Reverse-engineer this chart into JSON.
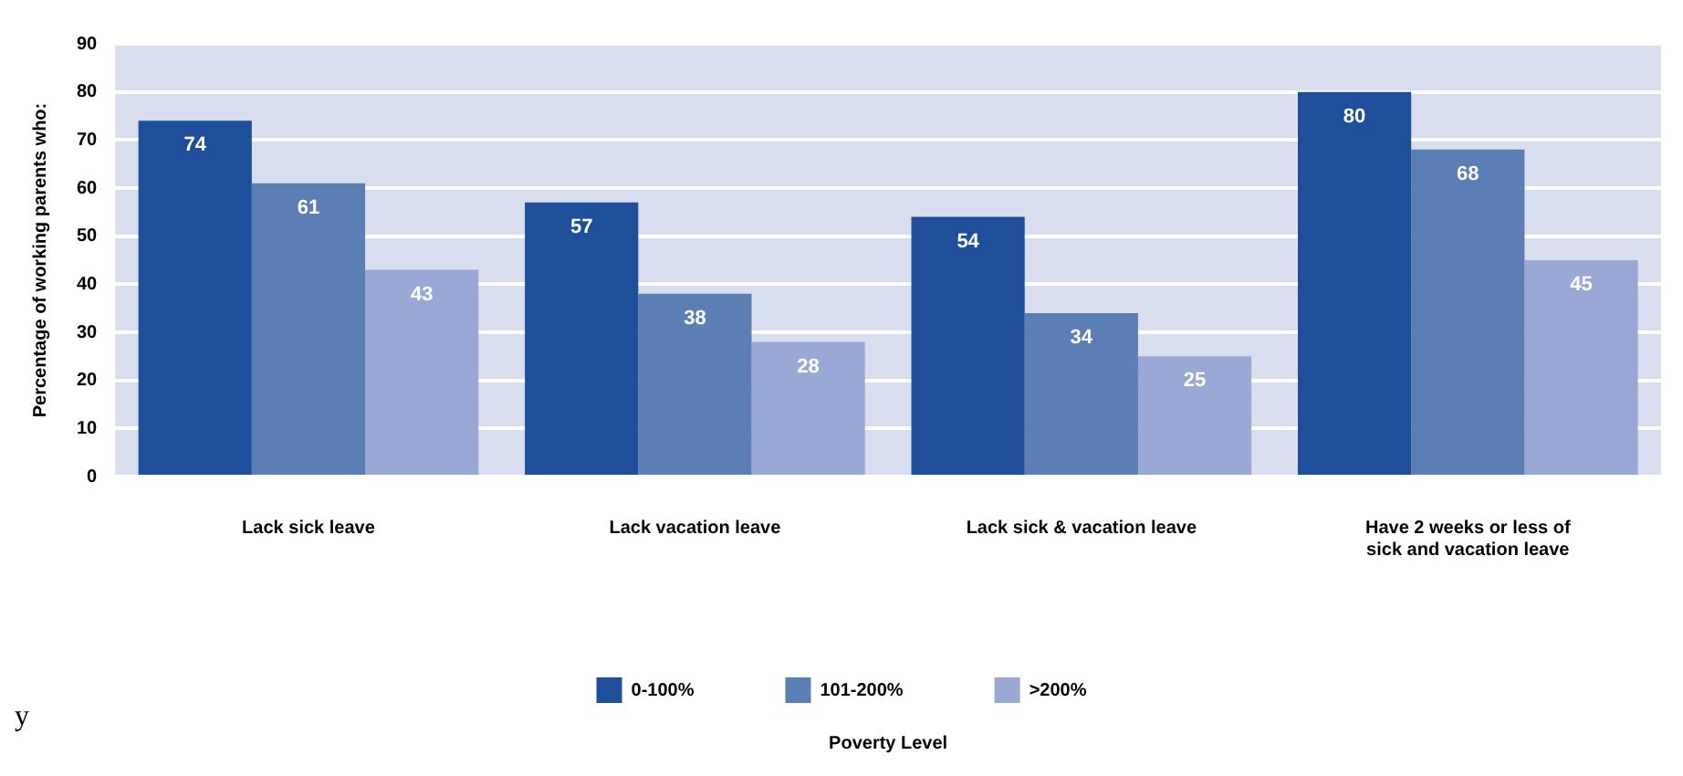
{
  "chart_data": {
    "type": "bar",
    "ylabel": "Percentage of working parents who:",
    "legend_title": "Poverty Level",
    "categories": [
      "Lack sick leave",
      "Lack vacation leave",
      "Lack sick & vacation leave",
      "Have 2 weeks or less of sick and vacation leave"
    ],
    "series": [
      {
        "name": "0-100%",
        "color": "#1f4e9a",
        "values": [
          74,
          57,
          54,
          80
        ]
      },
      {
        "name": "101-200%",
        "color": "#5b7fb5",
        "values": [
          61,
          38,
          34,
          68
        ]
      },
      {
        "name": ">200%",
        "color": "#9aa8d6",
        "values": [
          43,
          28,
          25,
          45
        ]
      }
    ],
    "ylim": [
      0,
      90
    ],
    "yticks": [
      0,
      10,
      20,
      30,
      40,
      50,
      60,
      70,
      80,
      90
    ],
    "grid": "y",
    "legend": "bottom",
    "data_labels": true,
    "annotations": [
      "y"
    ]
  }
}
